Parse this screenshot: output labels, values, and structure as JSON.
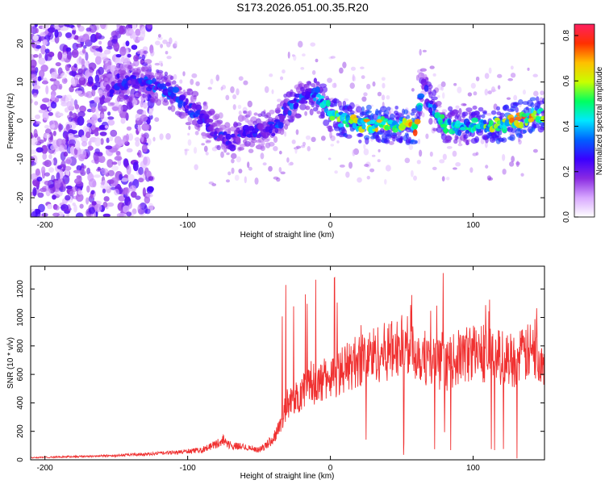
{
  "figure_title": "S173.2026.051.00.35.R20",
  "chart_data": [
    {
      "type": "heatmap",
      "xlabel": "Height of straight line (km)",
      "ylabel": "Frequency (Hz)",
      "xlim": [
        -210,
        150
      ],
      "ylim": [
        -25,
        25
      ],
      "xticks": [
        -200,
        -100,
        0,
        100
      ],
      "yticks": [
        -20,
        -10,
        0,
        10,
        20
      ],
      "colorbar": {
        "label": "Normalized spectral amplitude",
        "range": [
          0.0,
          0.85
        ],
        "ticks": [
          "0.0",
          "0.2",
          "0.4",
          "0.6",
          "0.8"
        ],
        "colors": [
          "#ffffff",
          "#d8a8ff",
          "#8a2be2",
          "#3a00ff",
          "#0060ff",
          "#00e8ff",
          "#00ff60",
          "#c8ff00",
          "#ffc000",
          "#ff3000",
          "#ff2060"
        ]
      },
      "ridge": {
        "description_points_x": [
          -210,
          -170,
          -150,
          -130,
          -120,
          -110,
          -100,
          -90,
          -80,
          -70,
          -60,
          -50,
          -40,
          -30,
          -20,
          -10,
          -5,
          0,
          10,
          20,
          30,
          40,
          50,
          60,
          65,
          70,
          80,
          90,
          100,
          110,
          120,
          130,
          140,
          150
        ],
        "frequency_hz": [
          0,
          0,
          10,
          10,
          9,
          7,
          4,
          1,
          -3,
          -6,
          -2,
          -3,
          -2,
          3,
          6,
          7,
          5,
          2,
          0,
          -1,
          -1,
          -1,
          -1,
          -2,
          10,
          4,
          -1,
          -2,
          -1,
          -1,
          -1,
          0,
          1,
          2
        ],
        "peak_amplitude": [
          0.1,
          0.1,
          0.3,
          0.3,
          0.35,
          0.35,
          0.3,
          0.3,
          0.3,
          0.25,
          0.3,
          0.3,
          0.3,
          0.35,
          0.35,
          0.4,
          0.45,
          0.5,
          0.6,
          0.65,
          0.7,
          0.6,
          0.55,
          0.8,
          0.2,
          0.4,
          0.5,
          0.45,
          0.5,
          0.55,
          0.65,
          0.7,
          0.75,
          0.6
        ]
      }
    },
    {
      "type": "line",
      "xlabel": "Height of straight line (km)",
      "ylabel": "SNR (10 * v/v)",
      "xlim": [
        -210,
        150
      ],
      "ylim": [
        0,
        1360
      ],
      "xticks": [
        -200,
        -100,
        0,
        100
      ],
      "yticks": [
        0,
        200,
        400,
        600,
        800,
        1000,
        1200
      ],
      "color": "#f03030",
      "series": [
        {
          "x": [
            -210,
            -190,
            -170,
            -150,
            -130,
            -110,
            -90,
            -80,
            -75,
            -70,
            -60,
            -50,
            -45,
            -40,
            -35,
            -30,
            -25,
            -20,
            -15,
            -10,
            -5,
            0,
            10,
            20,
            30,
            40,
            50,
            60,
            70,
            80,
            90,
            100,
            110,
            120,
            130,
            140,
            150
          ],
          "y": [
            15,
            20,
            25,
            30,
            40,
            50,
            70,
            110,
            140,
            100,
            90,
            70,
            100,
            150,
            250,
            400,
            420,
            480,
            560,
            520,
            560,
            580,
            640,
            700,
            740,
            760,
            800,
            760,
            700,
            650,
            720,
            760,
            740,
            720,
            700,
            760,
            720
          ]
        }
      ],
      "max_spike": 1340
    }
  ]
}
